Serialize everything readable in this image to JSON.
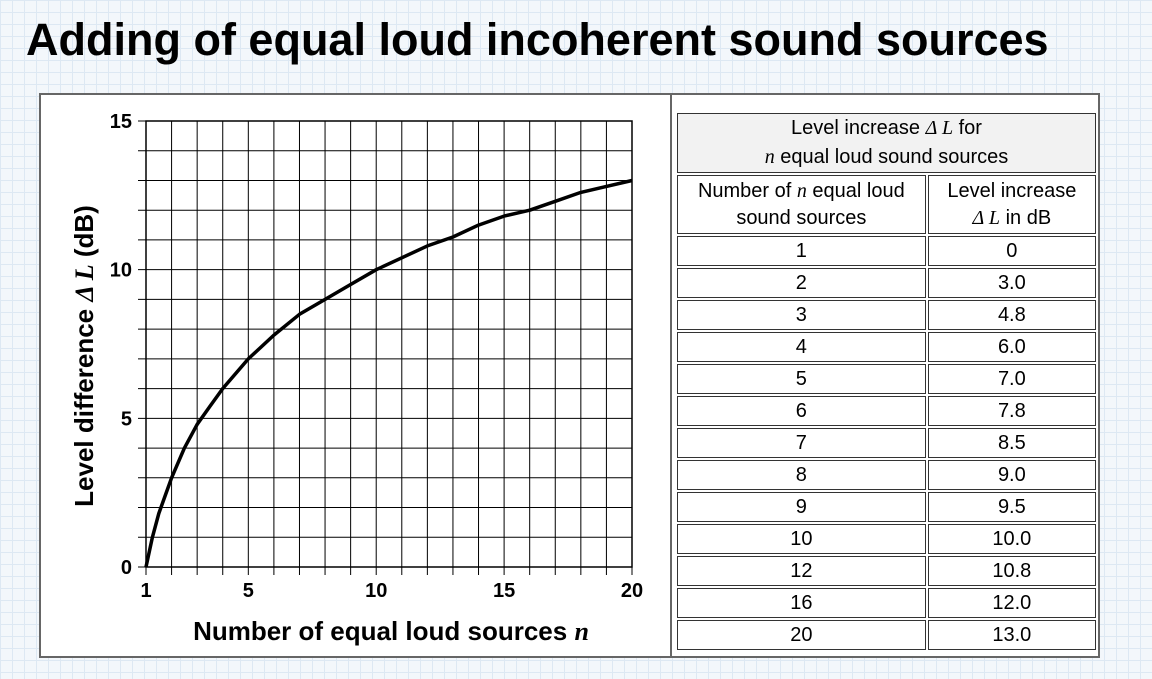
{
  "title": "Adding of equal loud incoherent sound sources",
  "chart_data": {
    "type": "line",
    "xlabel": "Number of equal loud sources",
    "xlabel_var": "n",
    "ylabel": "Level difference",
    "ylabel_var": "Δ L",
    "ylabel_unit": "(dB)",
    "xlim": [
      1,
      20
    ],
    "ylim": [
      0,
      15
    ],
    "xticks": [
      1,
      5,
      10,
      15,
      20
    ],
    "yticks": [
      0,
      5,
      10,
      15
    ],
    "grid": true,
    "series": [
      {
        "x": [
          1,
          1.25,
          1.5,
          1.75,
          2,
          2.5,
          3,
          3.5,
          4,
          5,
          6,
          7,
          8,
          9,
          10,
          11,
          12,
          13,
          14,
          15,
          16,
          17,
          18,
          19,
          20
        ],
        "y": [
          0,
          1.0,
          1.8,
          2.4,
          3.0,
          4.0,
          4.8,
          5.4,
          6.0,
          7.0,
          7.8,
          8.5,
          9.0,
          9.5,
          10.0,
          10.4,
          10.8,
          11.1,
          11.5,
          11.8,
          12.0,
          12.3,
          12.6,
          12.8,
          13.0
        ],
        "color": "#000000"
      }
    ]
  },
  "table": {
    "caption_line1_prefix": "Level increase ",
    "caption_line1_var": "Δ L",
    "caption_line1_suffix": " for",
    "caption_line2_var": "n",
    "caption_line2_suffix": " equal loud sound sources",
    "col1_header_prefix": "Number of ",
    "col1_header_var": "n",
    "col1_header_suffix": " equal loud",
    "col1_header_line2": "sound sources",
    "col2_header_line1": "Level increase",
    "col2_header_var": "Δ L",
    "col2_header_suffix": " in dB",
    "rows": [
      [
        "1",
        "0"
      ],
      [
        "2",
        "3.0"
      ],
      [
        "3",
        "4.8"
      ],
      [
        "4",
        "6.0"
      ],
      [
        "5",
        "7.0"
      ],
      [
        "6",
        "7.8"
      ],
      [
        "7",
        "8.5"
      ],
      [
        "8",
        "9.0"
      ],
      [
        "9",
        "9.5"
      ],
      [
        "10",
        "10.0"
      ],
      [
        "12",
        "10.8"
      ],
      [
        "16",
        "12.0"
      ],
      [
        "20",
        "13.0"
      ]
    ]
  }
}
